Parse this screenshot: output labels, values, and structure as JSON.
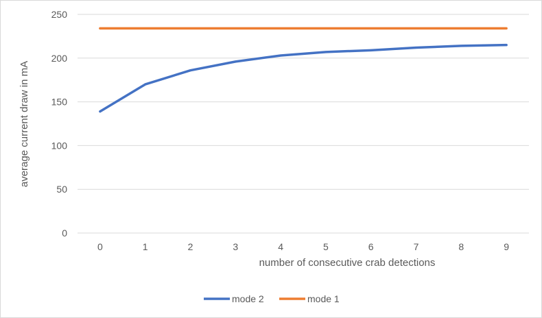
{
  "chart_data": {
    "type": "line",
    "title": "",
    "xlabel": "number of consecutive crab detections",
    "ylabel": "average current draw in mA",
    "categories": [
      "0",
      "1",
      "2",
      "3",
      "4",
      "5",
      "6",
      "7",
      "8",
      "9"
    ],
    "ylim": [
      0,
      250
    ],
    "yticks": [
      0,
      50,
      100,
      150,
      200,
      250
    ],
    "grid": true,
    "legend_position": "bottom",
    "series": [
      {
        "name": "mode 2",
        "color": "#4472C4",
        "values": [
          139,
          170,
          186,
          196,
          203,
          207,
          209,
          212,
          214,
          215
        ]
      },
      {
        "name": "mode 1",
        "color": "#ED7D31",
        "values": [
          234,
          234,
          234,
          234,
          234,
          234,
          234,
          234,
          234,
          234
        ]
      }
    ]
  }
}
